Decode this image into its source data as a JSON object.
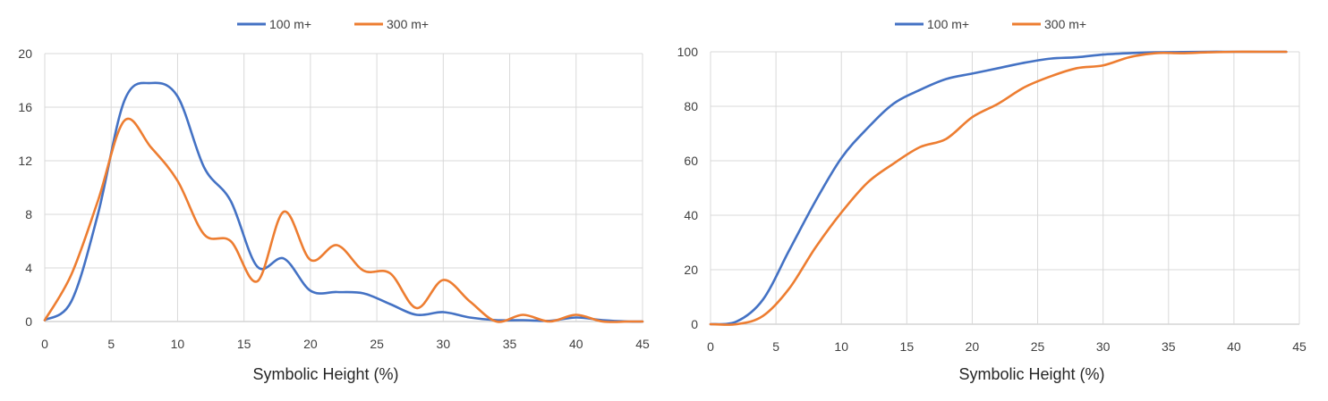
{
  "colors": {
    "series_100": "#4472C4",
    "series_300": "#ED7D31",
    "grid": "#D9D9D9",
    "axis": "#BFBFBF"
  },
  "chart_data": [
    {
      "type": "line",
      "xlabel": "Symbolic Height (%)",
      "ylabel": "",
      "xlim": [
        0,
        45
      ],
      "ylim": [
        0,
        20
      ],
      "xticks": [
        0,
        5,
        10,
        15,
        20,
        25,
        30,
        35,
        40,
        45
      ],
      "yticks": [
        0,
        4,
        8,
        12,
        16,
        20
      ],
      "grid": true,
      "legend_position": "top-center",
      "smooth": true,
      "series": [
        {
          "name": "100 m+",
          "color": "#4472C4",
          "x": [
            0,
            2,
            4,
            6,
            8,
            10,
            12,
            14,
            16,
            18,
            20,
            22,
            24,
            26,
            28,
            30,
            32,
            34,
            36,
            38,
            40,
            42,
            44,
            45
          ],
          "y": [
            0.1,
            1.5,
            8.0,
            16.5,
            17.8,
            16.8,
            11.5,
            9.0,
            4.1,
            4.7,
            2.3,
            2.2,
            2.1,
            1.3,
            0.5,
            0.7,
            0.3,
            0.1,
            0.1,
            0.05,
            0.3,
            0.1,
            0.0,
            0.0
          ]
        },
        {
          "name": "300 m+",
          "color": "#ED7D31",
          "x": [
            0,
            2,
            4,
            6,
            8,
            10,
            12,
            14,
            16,
            18,
            20,
            22,
            24,
            26,
            28,
            30,
            32,
            34,
            36,
            38,
            40,
            42,
            44,
            45
          ],
          "y": [
            0.1,
            3.5,
            9.0,
            15.0,
            13.0,
            10.5,
            6.5,
            6.0,
            3.0,
            8.2,
            4.6,
            5.7,
            3.8,
            3.6,
            1.0,
            3.1,
            1.5,
            0.0,
            0.5,
            0.0,
            0.5,
            0.0,
            0.0,
            0.0
          ]
        }
      ]
    },
    {
      "type": "line",
      "xlabel": "Symbolic Height (%)",
      "ylabel": "",
      "xlim": [
        0,
        45
      ],
      "ylim": [
        0,
        100
      ],
      "xticks": [
        0,
        5,
        10,
        15,
        20,
        25,
        30,
        35,
        40,
        45
      ],
      "yticks": [
        0,
        20,
        40,
        60,
        80,
        100
      ],
      "grid": true,
      "legend_position": "top-center",
      "smooth": true,
      "series": [
        {
          "name": "100 m+",
          "color": "#4472C4",
          "x": [
            0,
            2,
            4,
            6,
            8,
            10,
            12,
            14,
            16,
            18,
            20,
            22,
            24,
            26,
            28,
            30,
            32,
            34,
            36,
            38,
            40,
            42,
            44
          ],
          "y": [
            0,
            1,
            9,
            27,
            45,
            61,
            72,
            81,
            86,
            90,
            92,
            94,
            96,
            97.5,
            98,
            99,
            99.5,
            99.8,
            99.9,
            100,
            100,
            100,
            100
          ]
        },
        {
          "name": "300 m+",
          "color": "#ED7D31",
          "x": [
            0,
            2,
            4,
            6,
            8,
            10,
            12,
            14,
            16,
            18,
            20,
            22,
            24,
            26,
            28,
            30,
            32,
            34,
            36,
            38,
            40,
            42,
            44
          ],
          "y": [
            0,
            0,
            3,
            13,
            28,
            41,
            52,
            59,
            65,
            68,
            76,
            81,
            87,
            91,
            94,
            95,
            98,
            99.5,
            99.5,
            99.8,
            100,
            100,
            100
          ]
        }
      ]
    }
  ]
}
